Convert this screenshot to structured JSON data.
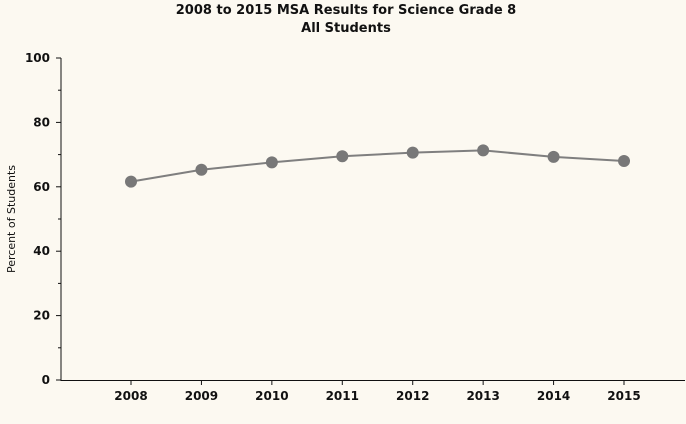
{
  "chart_data": {
    "type": "line",
    "title": "2008 to 2015 MSA Results for Science Grade 8",
    "subtitle": "All Students",
    "xlabel": "",
    "ylabel": "Percent of Students",
    "categories": [
      "2008",
      "2009",
      "2010",
      "2011",
      "2012",
      "2013",
      "2014",
      "2015"
    ],
    "series": [
      {
        "name": "All Students",
        "values": [
          61.6,
          65.3,
          67.6,
          69.5,
          70.6,
          71.3,
          69.3,
          68.0
        ]
      }
    ],
    "ylim": [
      0,
      100
    ],
    "yticks": [
      0,
      20,
      40,
      60,
      80,
      100
    ],
    "y_minor_step": 10,
    "grid": false,
    "legend": "none",
    "colors": {
      "line": "#7f7f7f",
      "marker": "#787878",
      "axis": "#111111",
      "background": "#fcf9f1"
    }
  }
}
